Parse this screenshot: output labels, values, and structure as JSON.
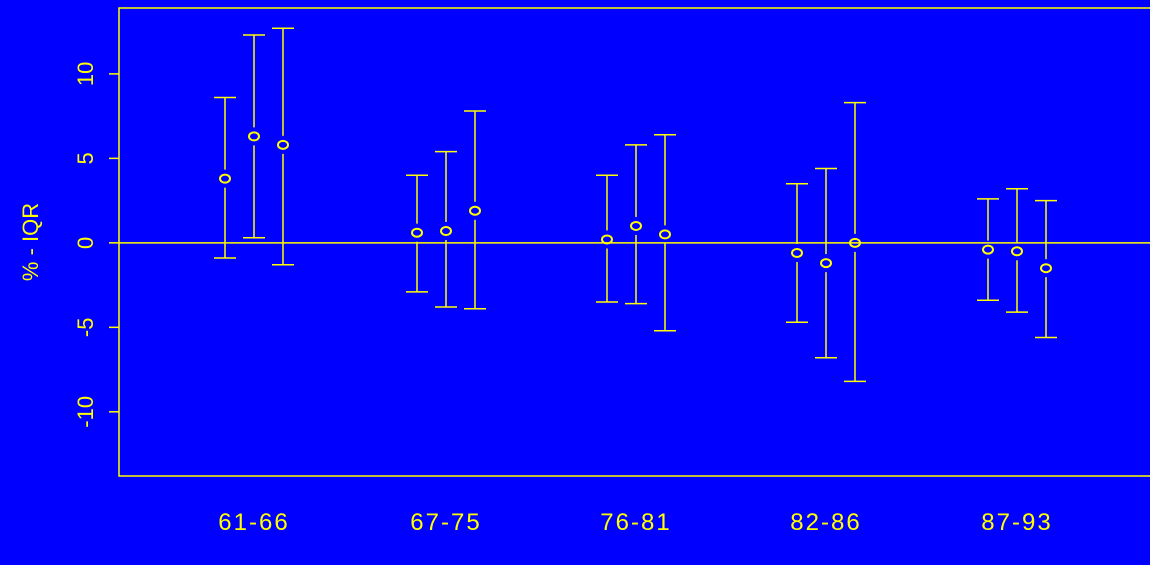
{
  "chart_data": {
    "type": "errorbar",
    "title": "",
    "xlabel": "",
    "ylabel": "% - IQR",
    "ylim": [
      -13.8,
      13.9
    ],
    "yticks": [
      -10,
      -5,
      0,
      5,
      10
    ],
    "ytick_labels": [
      "-10",
      "-5",
      "0",
      "5",
      "10"
    ],
    "categories": [
      "61-66",
      "67-75",
      "76-81",
      "82-86",
      "87-93"
    ],
    "reference_line": 0,
    "grid": false,
    "groups": [
      {
        "category": "61-66",
        "points": [
          {
            "estimate": 3.8,
            "lower": -0.9,
            "upper": 8.6
          },
          {
            "estimate": 6.3,
            "lower": 0.3,
            "upper": 12.3
          },
          {
            "estimate": 5.8,
            "lower": -1.3,
            "upper": 12.7
          }
        ]
      },
      {
        "category": "67-75",
        "points": [
          {
            "estimate": 0.6,
            "lower": -2.9,
            "upper": 4.0
          },
          {
            "estimate": 0.7,
            "lower": -3.8,
            "upper": 5.4
          },
          {
            "estimate": 1.9,
            "lower": -3.9,
            "upper": 7.8
          }
        ]
      },
      {
        "category": "76-81",
        "points": [
          {
            "estimate": 0.2,
            "lower": -3.5,
            "upper": 4.0
          },
          {
            "estimate": 1.0,
            "lower": -3.6,
            "upper": 5.8
          },
          {
            "estimate": 0.5,
            "lower": -5.2,
            "upper": 6.4
          }
        ]
      },
      {
        "category": "82-86",
        "points": [
          {
            "estimate": -0.6,
            "lower": -4.7,
            "upper": 3.5
          },
          {
            "estimate": -1.2,
            "lower": -6.8,
            "upper": 4.4
          },
          {
            "estimate": 0.0,
            "lower": -8.2,
            "upper": 8.3
          }
        ]
      },
      {
        "category": "87-93",
        "points": [
          {
            "estimate": -0.4,
            "lower": -3.4,
            "upper": 2.6
          },
          {
            "estimate": -0.5,
            "lower": -4.1,
            "upper": 3.2
          },
          {
            "estimate": -1.5,
            "lower": -5.6,
            "upper": 2.5
          }
        ]
      }
    ]
  },
  "colors": {
    "background": "#0000ff",
    "foreground": "#ffff00"
  }
}
